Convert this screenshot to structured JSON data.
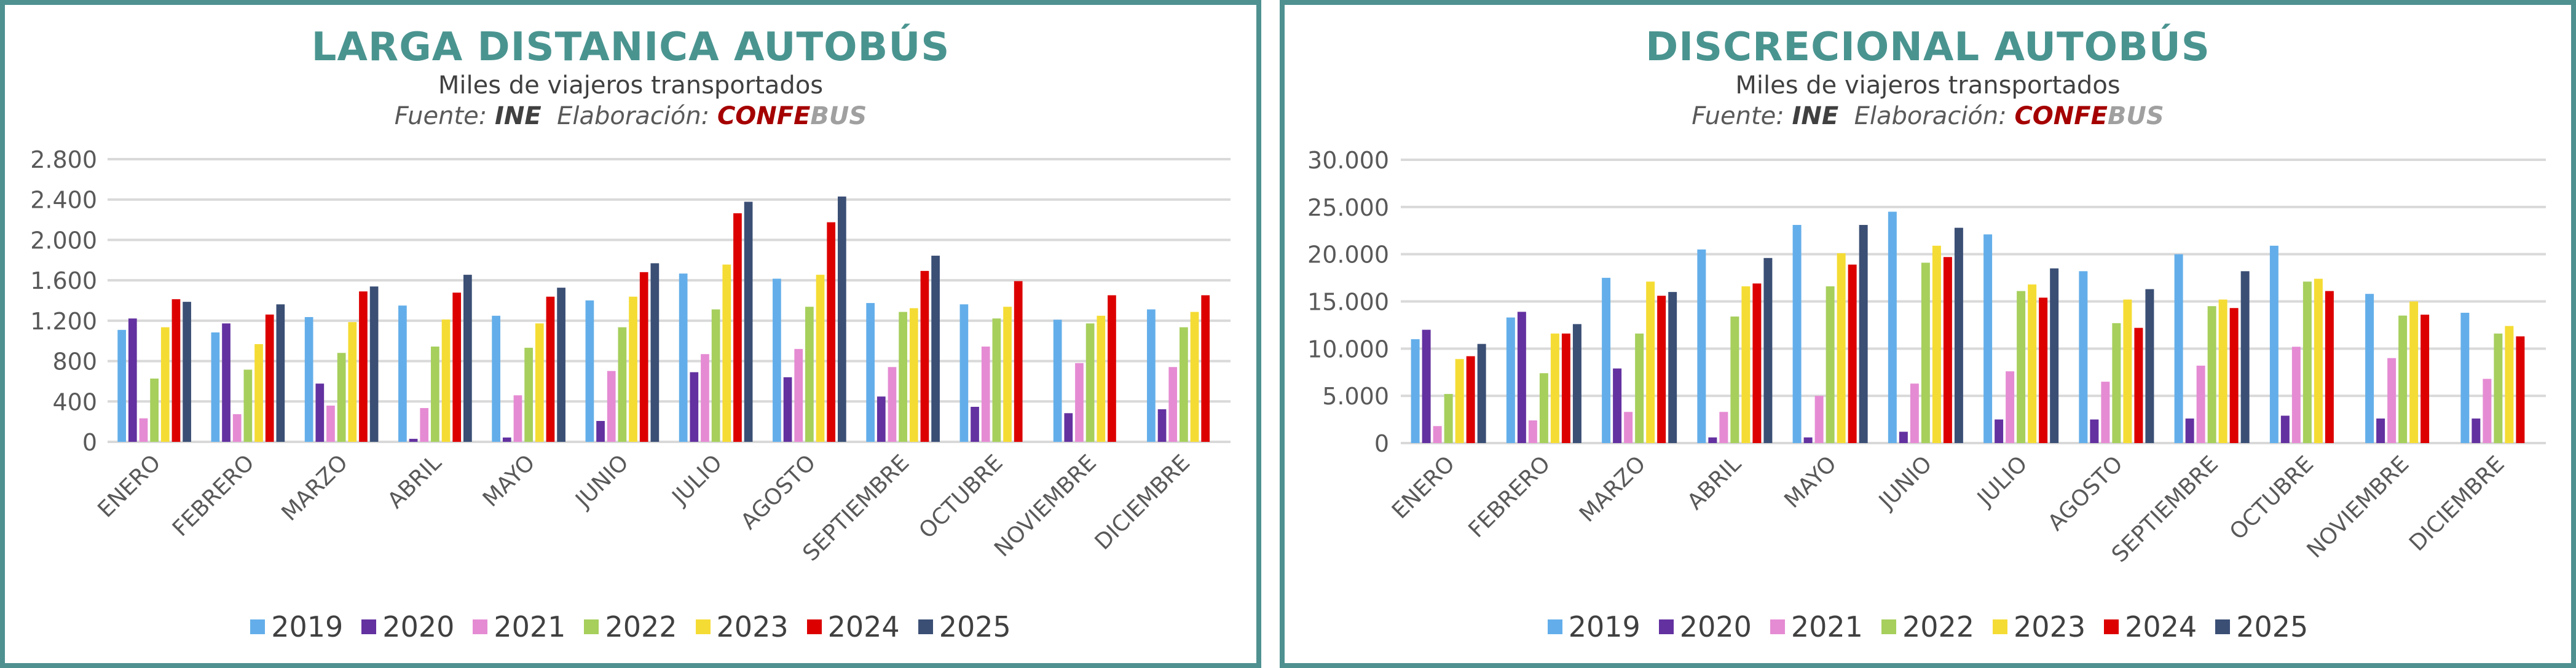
{
  "colors": {
    "2019": "#63aeea",
    "2020": "#6331a0",
    "2021": "#e58bd3",
    "2022": "#a6cf5c",
    "2023": "#f5dc34",
    "2024": "#dc0000",
    "2025": "#3b4f75",
    "title": "#4a9490",
    "border": "#4f9191"
  },
  "chart_data": [
    {
      "type": "bar",
      "title": "LARGA DISTANICA AUTOBÚS",
      "subtitle": "Miles de viajeros transportados",
      "source": {
        "label": "Fuente:",
        "value": "INE",
        "elab_label": "Elaboración:",
        "brand_a": "CONFE",
        "brand_b": "BUS"
      },
      "xlabel": "",
      "ylabel": "",
      "ylim": [
        0,
        2800
      ],
      "yticks": [
        0,
        400,
        800,
        1200,
        1600,
        2000,
        2400,
        2800
      ],
      "ytick_labels": [
        "0",
        "400",
        "800",
        "1.200",
        "1.600",
        "2.000",
        "2.400",
        "2.800"
      ],
      "grid": true,
      "legend": "bottom",
      "categories": [
        "ENERO",
        "FEBRERO",
        "MARZO",
        "ABRIL",
        "MAYO",
        "JUNIO",
        "JULIO",
        "AGOSTO",
        "SEPTIEMBRE",
        "OCTUBRE",
        "NOVIEMBRE",
        "DICIEMBRE"
      ],
      "series": [
        {
          "name": "2019",
          "values": [
            1109,
            1084,
            1236,
            1350,
            1249,
            1401,
            1667,
            1616,
            1375,
            1362,
            1210,
            1312
          ]
        },
        {
          "name": "2020",
          "values": [
            1222,
            1173,
            577,
            30,
            43,
            207,
            690,
            640,
            449,
            347,
            284,
            323
          ]
        },
        {
          "name": "2021",
          "values": [
            233,
            274,
            359,
            335,
            461,
            702,
            869,
            920,
            741,
            944,
            780,
            741
          ]
        },
        {
          "name": "2022",
          "values": [
            627,
            715,
            881,
            944,
            932,
            1135,
            1312,
            1338,
            1287,
            1222,
            1173,
            1135
          ]
        },
        {
          "name": "2023",
          "values": [
            1135,
            968,
            1186,
            1212,
            1173,
            1438,
            1756,
            1655,
            1324,
            1338,
            1249,
            1287
          ]
        },
        {
          "name": "2024",
          "values": [
            1413,
            1261,
            1490,
            1478,
            1438,
            1681,
            2264,
            2175,
            1693,
            1592,
            1452,
            1452
          ]
        },
        {
          "name": "2025",
          "values": [
            1387,
            1362,
            1539,
            1655,
            1527,
            1769,
            2378,
            2430,
            1844,
            null,
            null,
            null
          ]
        }
      ]
    },
    {
      "type": "bar",
      "title": "DISCRECIONAL AUTOBÚS",
      "subtitle": "Miles de viajeros transportados",
      "source": {
        "label": "Fuente:",
        "value": "INE",
        "elab_label": "Elaboración:",
        "brand_a": "CONFE",
        "brand_b": "BUS"
      },
      "xlabel": "",
      "ylabel": "",
      "ylim": [
        0,
        30000
      ],
      "yticks": [
        0,
        5000,
        10000,
        15000,
        20000,
        25000,
        30000
      ],
      "ytick_labels": [
        "0",
        "5.000",
        "10.000",
        "15.000",
        "20.000",
        "25.000",
        "30.000"
      ],
      "grid": true,
      "legend": "bottom",
      "categories": [
        "ENERO",
        "FEBRERO",
        "MARZO",
        "ABRIL",
        "MAYO",
        "JUNIO",
        "JULIO",
        "AGOSTO",
        "SEPTIEMBRE",
        "OCTUBRE",
        "NOVIEMBRE",
        "DICIEMBRE"
      ],
      "series": [
        {
          "name": "2019",
          "values": [
            11000,
            13300,
            17500,
            20500,
            23100,
            24500,
            22100,
            18200,
            20000,
            20900,
            15800,
            13800
          ]
        },
        {
          "name": "2020",
          "values": [
            12000,
            13900,
            7900,
            600,
            600,
            1200,
            2500,
            2500,
            2600,
            2900,
            2600,
            2600
          ]
        },
        {
          "name": "2021",
          "values": [
            1800,
            2400,
            3300,
            3300,
            5000,
            6300,
            7600,
            6500,
            8200,
            10200,
            9000,
            6800
          ]
        },
        {
          "name": "2022",
          "values": [
            5200,
            7400,
            11600,
            13400,
            16600,
            19100,
            16100,
            12700,
            14500,
            17100,
            13500,
            11600
          ]
        },
        {
          "name": "2023",
          "values": [
            8900,
            11600,
            17100,
            16600,
            20100,
            20900,
            16800,
            15200,
            15200,
            17400,
            15000,
            12400
          ]
        },
        {
          "name": "2024",
          "values": [
            9200,
            11600,
            15600,
            16900,
            18900,
            19700,
            15400,
            12200,
            14300,
            16100,
            13600,
            11300
          ]
        },
        {
          "name": "2025",
          "values": [
            10500,
            12600,
            16000,
            19600,
            23100,
            22800,
            18500,
            16300,
            18200,
            null,
            null,
            null
          ]
        }
      ]
    }
  ]
}
